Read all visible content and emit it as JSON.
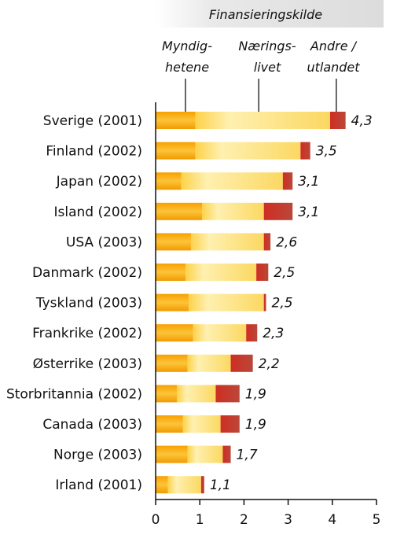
{
  "chart_data": {
    "type": "bar",
    "orientation": "horizontal",
    "stacked": true,
    "title": "Finansieringskilde",
    "categories": [
      "Sverige (2001)",
      "Finland (2002)",
      "Japan (2002)",
      "Island (2002)",
      "USA (2003)",
      "Danmark (2002)",
      "Tyskland (2003)",
      "Frankrike (2002)",
      "Østerrike (2003)",
      "Storbritannia (2002)",
      "Canada (2003)",
      "Norge (2003)",
      "Irland (2001)"
    ],
    "series": [
      {
        "name": "Myndig-hetene",
        "name_lines": [
          "Myndig-",
          "hetene"
        ],
        "values": [
          0.9,
          0.9,
          0.58,
          1.05,
          0.8,
          0.68,
          0.75,
          0.85,
          0.72,
          0.48,
          0.62,
          0.72,
          0.28
        ],
        "color": "#f5a300"
      },
      {
        "name": "Nærings-livet",
        "name_lines": [
          "Nærings-",
          "livet"
        ],
        "values": [
          3.05,
          2.38,
          2.3,
          1.4,
          1.65,
          1.6,
          1.7,
          1.2,
          0.98,
          0.88,
          0.85,
          0.8,
          0.75
        ],
        "color": "#fde37a"
      },
      {
        "name": "Andre / utlandet",
        "name_lines": [
          "Andre /",
          "utlandet"
        ],
        "values": [
          0.35,
          0.22,
          0.22,
          0.65,
          0.15,
          0.27,
          0.05,
          0.25,
          0.5,
          0.54,
          0.43,
          0.18,
          0.07
        ],
        "color": "#c63a2a"
      }
    ],
    "totals": [
      "4,3",
      "3,5",
      "3,1",
      "3,1",
      "2,6",
      "2,5",
      "2,5",
      "2,3",
      "2,2",
      "1,9",
      "1,9",
      "1,7",
      "1,1"
    ],
    "xlim": [
      0,
      5
    ],
    "xticks": [
      "0",
      "1",
      "2",
      "3",
      "4",
      "5"
    ],
    "grid": false,
    "legend": "top"
  }
}
